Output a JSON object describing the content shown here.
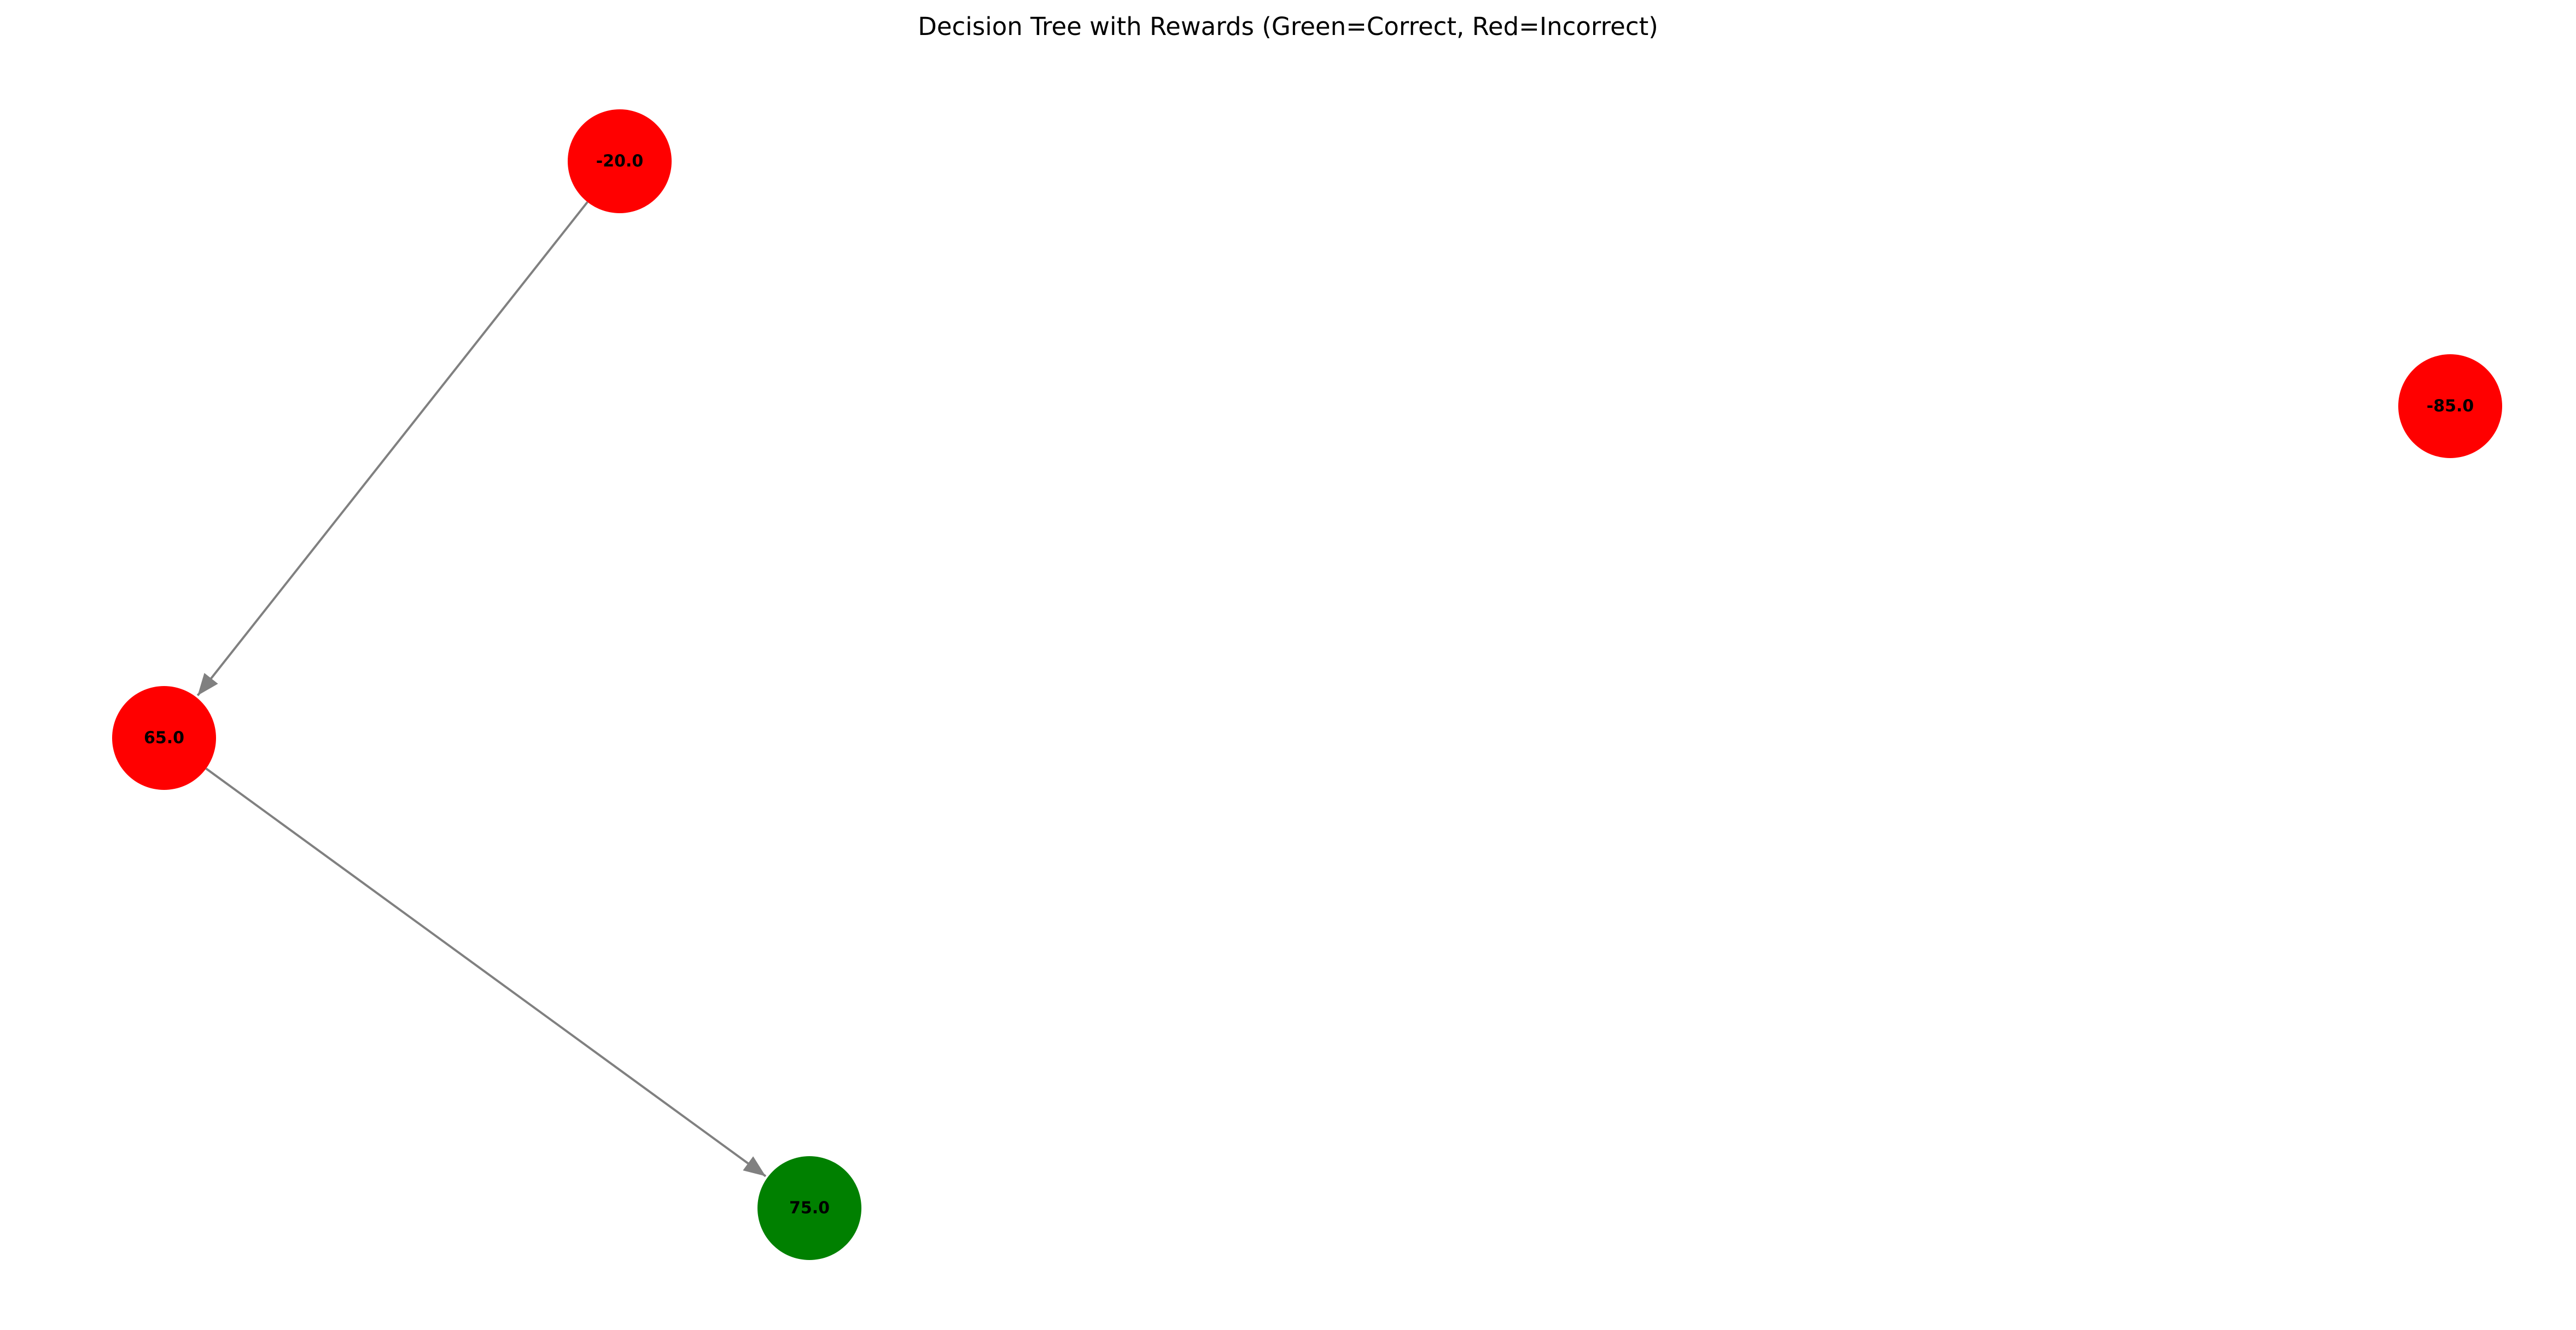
{
  "title": "Decision Tree with Rewards (Green=Correct, Red=Incorrect)",
  "colors": {
    "correct": "#008000",
    "incorrect": "#ff0000",
    "edge": "#808080",
    "label": "#000000",
    "background": "#ffffff"
  },
  "nodes": [
    {
      "id": "n1",
      "label": "-20.0",
      "status": "incorrect"
    },
    {
      "id": "n2",
      "label": "65.0",
      "status": "incorrect"
    },
    {
      "id": "n3",
      "label": "75.0",
      "status": "correct"
    },
    {
      "id": "n4",
      "label": "-85.0",
      "status": "incorrect"
    }
  ],
  "edges": [
    {
      "from": "n1",
      "to": "n2"
    },
    {
      "from": "n2",
      "to": "n3"
    }
  ]
}
